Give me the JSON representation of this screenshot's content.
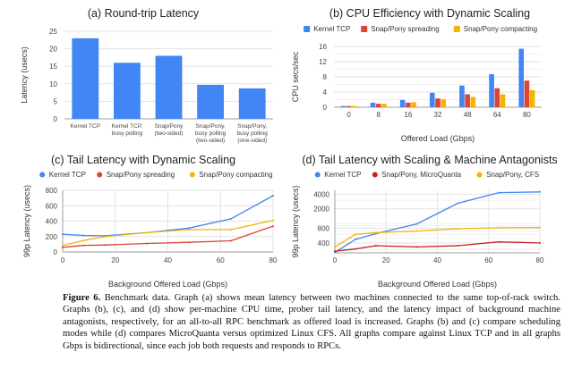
{
  "chart_data": [
    {
      "id": "a",
      "type": "bar",
      "title": "(a) Round-trip Latency",
      "xlabel": "",
      "ylabel": "Latency (usecs)",
      "categories": [
        [
          "Kernel TCP"
        ],
        [
          "Kernel TCP,",
          "busy polling"
        ],
        [
          "Snap/Pony",
          "(two-sided)"
        ],
        [
          "Snap/Pony,",
          "busy polling",
          "(two-sided)"
        ],
        [
          "Snap/Pony,",
          "busy polling",
          "(one-sided)"
        ]
      ],
      "values": [
        23,
        16,
        18,
        9.7,
        8.7
      ],
      "ylim": [
        0,
        25
      ],
      "yticks": [
        0,
        5,
        10,
        15,
        20,
        25
      ],
      "color": "#4285f4",
      "grid": true
    },
    {
      "id": "b",
      "type": "bar",
      "title": "(b) CPU Efficiency with Dynamic Scaling",
      "xlabel": "Offered Load (Gbps)",
      "ylabel": "CPU secs/sec",
      "categories": [
        "0",
        "8",
        "16",
        "32",
        "48",
        "64",
        "80"
      ],
      "series": [
        {
          "name": "Kernel TCP",
          "color": "#4285f4",
          "values": [
            0.3,
            1.2,
            1.9,
            3.8,
            5.7,
            8.7,
            15.4
          ]
        },
        {
          "name": "Snap/Pony spreading",
          "color": "#db4437",
          "values": [
            0.3,
            0.9,
            1.2,
            2.3,
            3.4,
            5.0,
            7.0
          ]
        },
        {
          "name": "Snap/Pony compacting",
          "color": "#f4b400",
          "values": [
            0.3,
            0.9,
            1.3,
            2.1,
            2.7,
            3.4,
            4.5
          ]
        }
      ],
      "ylim": [
        0,
        16
      ],
      "yticks": [
        0,
        4,
        8,
        12,
        16
      ],
      "legend": "top",
      "grid": true
    },
    {
      "id": "c",
      "type": "line",
      "title": "(c) Tail Latency with Dynamic Scaling",
      "xlabel": "Background Offered Load (Gbps)",
      "ylabel": "99p Latency (usecs)",
      "x": [
        0,
        8,
        16,
        32,
        48,
        64,
        80
      ],
      "series": [
        {
          "name": "Kernel TCP",
          "color": "#4285f4",
          "values": [
            230,
            215,
            210,
            250,
            310,
            430,
            730
          ]
        },
        {
          "name": "Snap/Pony spreading",
          "color": "#db4437",
          "values": [
            60,
            85,
            90,
            110,
            125,
            145,
            335
          ]
        },
        {
          "name": "Snap/Pony compacting",
          "color": "#f4b400",
          "values": [
            85,
            150,
            200,
            250,
            290,
            290,
            410
          ]
        }
      ],
      "xlim": [
        0,
        80
      ],
      "xticks": [
        0,
        20,
        40,
        60,
        80
      ],
      "ylim": [
        0,
        800
      ],
      "yticks": [
        0,
        200,
        400,
        600,
        800
      ],
      "legend": "top",
      "grid": true
    },
    {
      "id": "d",
      "type": "line",
      "title": "(d) Tail Latency with Scaling & Machine Antagonists",
      "xlabel": "Background Offered Load (Gbps)",
      "ylabel": "99p Latency (usecs)",
      "x": [
        0,
        8,
        16,
        32,
        48,
        64,
        80
      ],
      "series": [
        {
          "name": "Kernel TCP",
          "color": "#4285f4",
          "values": [
            255,
            470,
            620,
            980,
            2600,
            4300,
            4450
          ]
        },
        {
          "name": "Snap/Pony, MicroQuanta",
          "color": "#c5221f",
          "values": [
            270,
            300,
            350,
            330,
            350,
            420,
            400
          ]
        },
        {
          "name": "Snap/Pony, CFS",
          "color": "#f4b400",
          "values": [
            330,
            600,
            650,
            700,
            780,
            820,
            830
          ]
        }
      ],
      "xlim": [
        0,
        80
      ],
      "xticks": [
        0,
        20,
        40,
        60,
        80
      ],
      "yscale": "log",
      "ylim": [
        250,
        4800
      ],
      "yticks": [
        400,
        800,
        2000,
        4000
      ],
      "legend": "top",
      "grid": true
    }
  ],
  "caption": {
    "label": "Figure 6.",
    "text": " Benchmark data. Graph (a) shows mean latency between two machines connected to the same top-of-rack switch. Graphs (b), (c), and (d) show per-machine CPU time, prober tail latency, and the latency impact of background machine antagonists, respectively, for an all-to-all RPC benchmark as offered load is increased. Graphs (b) and (c) compare scheduling modes while (d) compares MicroQuanta versus optimized Linux CFS. All graphs compare against Linux TCP and in all graphs Gbps is bidirectional, since each job both requests and responds to RPCs."
  }
}
